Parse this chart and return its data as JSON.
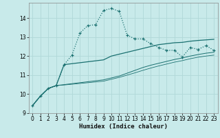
{
  "xlabel": "Humidex (Indice chaleur)",
  "background_color": "#c8eaea",
  "grid_color": "#b0d8d8",
  "line_color": "#1a7070",
  "xlim": [
    -0.5,
    23.5
  ],
  "ylim": [
    9.0,
    14.8
  ],
  "yticks": [
    9,
    10,
    11,
    12,
    13,
    14
  ],
  "xticks": [
    0,
    1,
    2,
    3,
    4,
    5,
    6,
    7,
    8,
    9,
    10,
    11,
    12,
    13,
    14,
    15,
    16,
    17,
    18,
    19,
    20,
    21,
    22,
    23
  ],
  "curve1_x": [
    0,
    1,
    2,
    3,
    4,
    5,
    6,
    7,
    8,
    9,
    10,
    11,
    12,
    13,
    14,
    15,
    16,
    17,
    18,
    19,
    20,
    21,
    22,
    23
  ],
  "curve1_y": [
    9.4,
    9.9,
    10.3,
    10.45,
    11.55,
    12.05,
    13.2,
    13.6,
    13.65,
    14.4,
    14.5,
    14.35,
    13.1,
    12.9,
    12.9,
    12.65,
    12.45,
    12.3,
    12.3,
    11.95,
    12.45,
    12.35,
    12.55,
    12.3
  ],
  "curve2_x": [
    0,
    1,
    2,
    3,
    4,
    5,
    6,
    7,
    8,
    9,
    10,
    11,
    12,
    13,
    14,
    15,
    16,
    17,
    18,
    19,
    20,
    21,
    22,
    23
  ],
  "curve2_y": [
    9.4,
    9.9,
    10.3,
    10.45,
    11.55,
    11.6,
    11.65,
    11.7,
    11.75,
    11.8,
    12.0,
    12.1,
    12.2,
    12.3,
    12.4,
    12.5,
    12.6,
    12.65,
    12.7,
    12.72,
    12.78,
    12.82,
    12.85,
    12.88
  ],
  "curve3_x": [
    0,
    1,
    2,
    3,
    4,
    5,
    6,
    7,
    8,
    9,
    10,
    11,
    12,
    13,
    14,
    15,
    16,
    17,
    18,
    19,
    20,
    21,
    22,
    23
  ],
  "curve3_y": [
    9.4,
    9.9,
    10.3,
    10.45,
    10.5,
    10.55,
    10.6,
    10.65,
    10.7,
    10.75,
    10.85,
    10.95,
    11.1,
    11.25,
    11.4,
    11.52,
    11.62,
    11.72,
    11.82,
    11.9,
    12.0,
    12.08,
    12.15,
    12.2
  ],
  "curve4_x": [
    0,
    1,
    2,
    3,
    4,
    5,
    6,
    7,
    8,
    9,
    10,
    11,
    12,
    13,
    14,
    15,
    16,
    17,
    18,
    19,
    20,
    21,
    22,
    23
  ],
  "curve4_y": [
    9.4,
    9.9,
    10.3,
    10.45,
    10.48,
    10.52,
    10.56,
    10.6,
    10.64,
    10.68,
    10.78,
    10.88,
    11.0,
    11.12,
    11.25,
    11.37,
    11.48,
    11.58,
    11.68,
    11.76,
    11.86,
    11.94,
    12.0,
    12.05
  ]
}
